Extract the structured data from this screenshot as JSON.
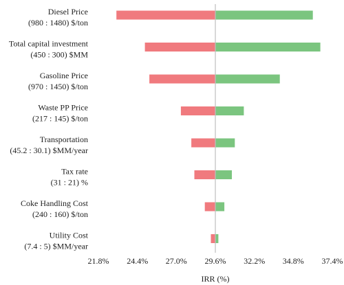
{
  "chart_data": {
    "type": "bar",
    "orientation": "horizontal",
    "variant": "tornado",
    "xlabel": "IRR (%)",
    "base_value": 29.6,
    "xlim": [
      21.8,
      37.4
    ],
    "xticks": [
      "21.8%",
      "24.4%",
      "27.0%",
      "29.6%",
      "32.2%",
      "34.8%",
      "37.4%"
    ],
    "xtick_values": [
      21.8,
      24.4,
      27.0,
      29.6,
      32.2,
      34.8,
      37.4
    ],
    "grid": false,
    "colors": {
      "low": "#f07a7e",
      "high": "#7bc57f",
      "baseline": "#bfbfbf"
    },
    "categories": [
      {
        "name": "Diesel Price",
        "range": "(980 : 1480) $/ton",
        "low": 23.0,
        "high": 36.1
      },
      {
        "name": "Total capital investment",
        "range": "(450 : 300) $MM",
        "low": 24.9,
        "high": 36.6
      },
      {
        "name": "Gasoline Price",
        "range": "(970 : 1450) $/ton",
        "low": 25.2,
        "high": 33.9
      },
      {
        "name": "Waste PP Price",
        "range": "(217 : 145) $/ton",
        "low": 27.3,
        "high": 31.5
      },
      {
        "name": "Transportation",
        "range": "(45.2 : 30.1) $MM/year",
        "low": 28.0,
        "high": 30.9
      },
      {
        "name": "Tax rate",
        "range": "(31 : 21) %",
        "low": 28.2,
        "high": 30.7
      },
      {
        "name": "Coke Handling Cost",
        "range": "(240 : 160) $/ton",
        "low": 28.9,
        "high": 30.2
      },
      {
        "name": "Utility Cost",
        "range": "(7.4 : 5) $MM/year",
        "low": 29.3,
        "high": 29.8
      }
    ]
  }
}
